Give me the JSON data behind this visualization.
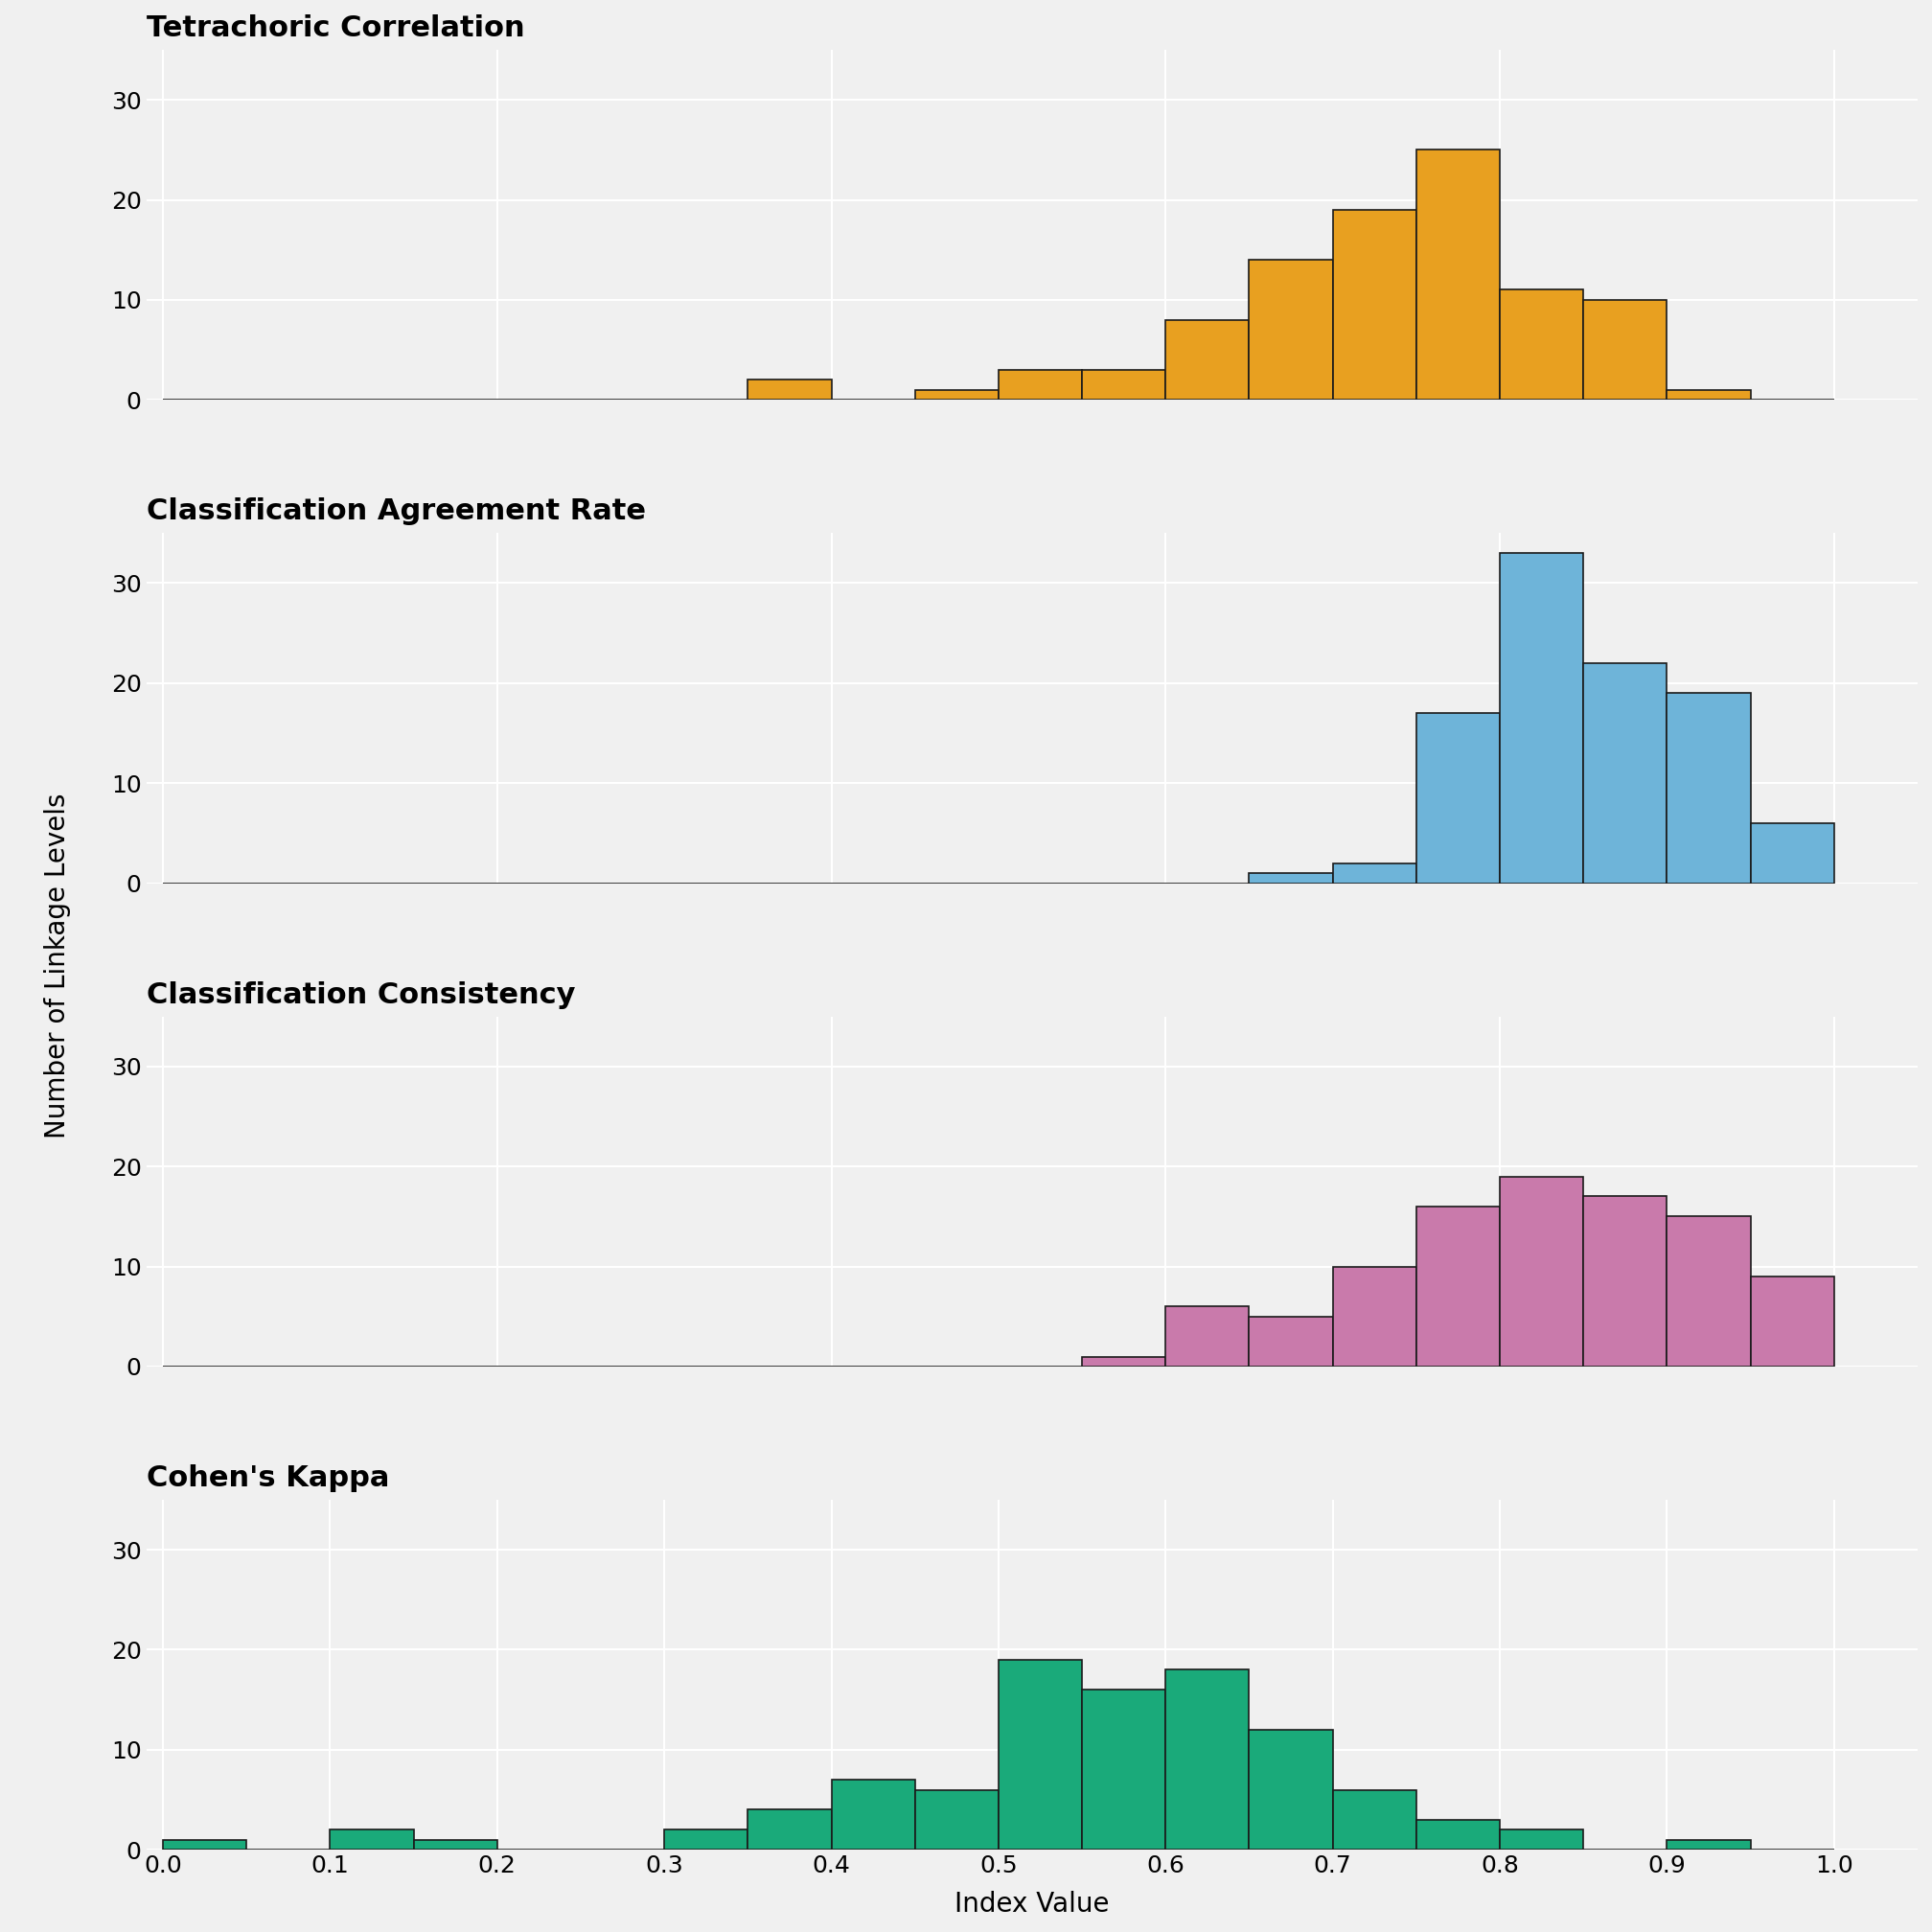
{
  "panels": [
    {
      "title": "Tetrachoric Correlation",
      "color": "#E8A020",
      "edgecolor": "#1a1a1a",
      "bin_edges": [
        0.0,
        0.05,
        0.1,
        0.15,
        0.2,
        0.25,
        0.3,
        0.35,
        0.4,
        0.45,
        0.5,
        0.55,
        0.6,
        0.65,
        0.7,
        0.75,
        0.8,
        0.85,
        0.9,
        0.95,
        1.0
      ],
      "counts": [
        0,
        0,
        0,
        0,
        0,
        0,
        0,
        2,
        0,
        1,
        3,
        3,
        8,
        14,
        19,
        25,
        11,
        10,
        1,
        0
      ]
    },
    {
      "title": "Classification Agreement Rate",
      "color": "#6EB4D9",
      "edgecolor": "#1a1a1a",
      "bin_edges": [
        0.0,
        0.05,
        0.1,
        0.15,
        0.2,
        0.25,
        0.3,
        0.35,
        0.4,
        0.45,
        0.5,
        0.55,
        0.6,
        0.65,
        0.7,
        0.75,
        0.8,
        0.85,
        0.9,
        0.95,
        1.0
      ],
      "counts": [
        0,
        0,
        0,
        0,
        0,
        0,
        0,
        0,
        0,
        0,
        0,
        0,
        0,
        1,
        2,
        17,
        33,
        22,
        19,
        6
      ]
    },
    {
      "title": "Classification Consistency",
      "color": "#C97AAB",
      "edgecolor": "#1a1a1a",
      "bin_edges": [
        0.0,
        0.05,
        0.1,
        0.15,
        0.2,
        0.25,
        0.3,
        0.35,
        0.4,
        0.45,
        0.5,
        0.55,
        0.6,
        0.65,
        0.7,
        0.75,
        0.8,
        0.85,
        0.9,
        0.95,
        1.0
      ],
      "counts": [
        0,
        0,
        0,
        0,
        0,
        0,
        0,
        0,
        0,
        0,
        0,
        1,
        6,
        5,
        10,
        16,
        19,
        17,
        15,
        9
      ]
    },
    {
      "title": "Cohen's Kappa",
      "color": "#1AAA7A",
      "edgecolor": "#1a1a1a",
      "bin_edges": [
        0.0,
        0.05,
        0.1,
        0.15,
        0.2,
        0.25,
        0.3,
        0.35,
        0.4,
        0.45,
        0.5,
        0.55,
        0.6,
        0.65,
        0.7,
        0.75,
        0.8,
        0.85,
        0.9,
        0.95,
        1.0
      ],
      "counts": [
        1,
        0,
        2,
        1,
        0,
        0,
        2,
        4,
        7,
        6,
        19,
        16,
        18,
        12,
        6,
        3,
        2,
        0,
        1,
        0
      ]
    }
  ],
  "xlabel": "Index Value",
  "ylabel": "Number of Linkage Levels",
  "ylim": [
    0,
    35
  ],
  "yticks": [
    0,
    10,
    20,
    30
  ],
  "xticks": [
    0.0,
    0.1,
    0.2,
    0.3,
    0.4,
    0.5,
    0.6,
    0.7,
    0.8,
    0.9,
    1.0
  ],
  "xlim": [
    -0.01,
    1.05
  ],
  "background_color": "#F0F0F0",
  "grid_color": "#FFFFFF",
  "title_fontsize": 22,
  "label_fontsize": 20,
  "tick_fontsize": 18
}
